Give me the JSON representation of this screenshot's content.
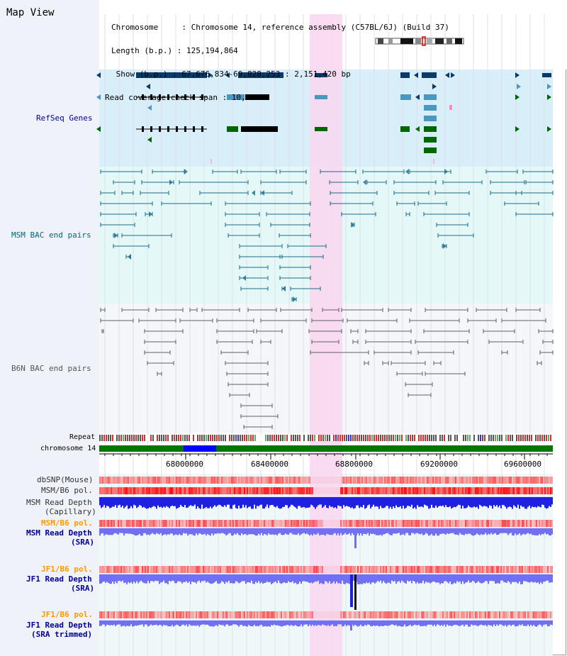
{
  "header": {
    "title": "Map View",
    "chromosome_line": "Chromosome     : Chromosome 14, reference assembly (C57BL/6J) (Build 37)",
    "length_line": "Length (b.p.) : 125,194,864",
    "show_line": " Show (b.p.) : 67,676,834-69,828,253 : 2,151,420 bp",
    "coverage_line": "Read coverage check span : 10,000"
  },
  "tracks": {
    "refseq": "RefSeq Genes",
    "msm_bac": "MSM BAC end pairs",
    "b6n_bac": "B6N BAC end pairs",
    "repeat": "Repeat",
    "chromosome": "chromosome 14",
    "dbsnp": "dbSNP(Mouse)",
    "msm_b6_pol": "MSM/B6 pol.",
    "msm_depth_cap_1": "MSM Read Depth",
    "msm_depth_cap_2": "(Capillary)",
    "msm_b6_pol2": "MSM/B6 pol.",
    "msm_depth_sra_1": "MSM Read Depth",
    "msm_depth_sra_2": "(SRA)",
    "jf1_b6_pol": "JF1/B6 pol.",
    "jf1_depth_sra_1": "JF1 Read Depth",
    "jf1_depth_sra_2": "(SRA)",
    "jf1_b6_pol2": "JF1/B6 pol.",
    "jf1_depth_trim_1": "JF1 Read Depth",
    "jf1_depth_trim_2": "(SRA trimmed)"
  },
  "axis": {
    "ticks": [
      "68000000",
      "68400000",
      "68800000",
      "69200000",
      "69600000"
    ]
  },
  "colors": {
    "refseq_bg": "#d8eef8",
    "msm_bg": "#e4f8f8",
    "b6n_bg": "#f4f6fa",
    "highlight": "#f8d8f0",
    "gene_dark": "#0a3a6a",
    "gene_mid": "#4a98c0",
    "gene_green": "#006600",
    "msm_line": "#1a6a8a",
    "b6n_line": "#606060",
    "chrom_green": "#007700",
    "chrom_blue": "#0000ff",
    "depth_blue": "#2020e0",
    "depth_light": "#7070f0",
    "label_blue": "#000099",
    "label_orange": "#ff9900",
    "label_teal": "#006677"
  }
}
